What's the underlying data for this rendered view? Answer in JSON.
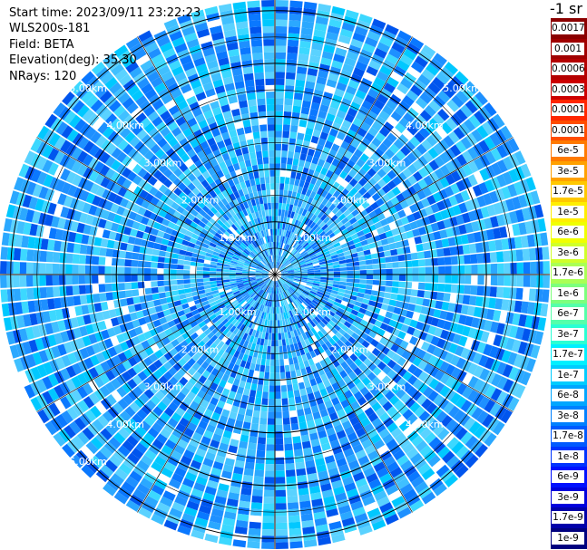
{
  "info": {
    "start_time": "Start time: 2023/09/11 23:22:23",
    "device": "WLS200s-181",
    "field": "Field: BETA",
    "elevation": "Elevation(deg): 35.30",
    "nrays": "NRays: 120"
  },
  "polar_plot": {
    "n_rays": 120,
    "max_range_km": 5.2,
    "ring_step_km": 0.5,
    "gridline_angles_deg": [
      0,
      30,
      60,
      90,
      120,
      150,
      180,
      210,
      240,
      270,
      300,
      330
    ],
    "range_labels": [
      "1.00km",
      "2.00km",
      "3.00km",
      "4.00km",
      "5.00km"
    ],
    "dominant_colors": [
      "#1e90ff",
      "#0a78ff",
      "#2ba8ff",
      "#40c0ff",
      "#5ad2ff",
      "#00c8ff",
      "#3cd8ff",
      "#0055ee"
    ]
  },
  "colorbar": {
    "title": "-1 sr",
    "levels": [
      {
        "label": "0.0017",
        "color": "#8b0000"
      },
      {
        "label": "0.001",
        "color": "#a00000"
      },
      {
        "label": "0.0006",
        "color": "#b40000"
      },
      {
        "label": "0.0003",
        "color": "#cc0000"
      },
      {
        "label": "0.00017",
        "color": "#ff2600"
      },
      {
        "label": "0.0001",
        "color": "#ff4d00"
      },
      {
        "label": "6e-5",
        "color": "#ff7a00"
      },
      {
        "label": "3e-5",
        "color": "#ffa100"
      },
      {
        "label": "1.7e-5",
        "color": "#ffc800"
      },
      {
        "label": "1e-5",
        "color": "#ffee00"
      },
      {
        "label": "6e-6",
        "color": "#f0ff00"
      },
      {
        "label": "3e-6",
        "color": "#d0ff2a"
      },
      {
        "label": "1.7e-6",
        "color": "#aaff55"
      },
      {
        "label": "1e-6",
        "color": "#7dff7d"
      },
      {
        "label": "6e-7",
        "color": "#55ffaa"
      },
      {
        "label": "3e-7",
        "color": "#2affd4"
      },
      {
        "label": "1.7e-7",
        "color": "#00f0ff"
      },
      {
        "label": "1e-7",
        "color": "#00ccff"
      },
      {
        "label": "6e-8",
        "color": "#00a6ff"
      },
      {
        "label": "3e-8",
        "color": "#0080ff"
      },
      {
        "label": "1.7e-8",
        "color": "#005aff"
      },
      {
        "label": "1e-8",
        "color": "#0033ff"
      },
      {
        "label": "6e-9",
        "color": "#0010ff"
      },
      {
        "label": "3e-9",
        "color": "#0000dd"
      },
      {
        "label": "1.7e-9",
        "color": "#0000aa"
      },
      {
        "label": "1e-9",
        "color": "#000080"
      }
    ]
  }
}
